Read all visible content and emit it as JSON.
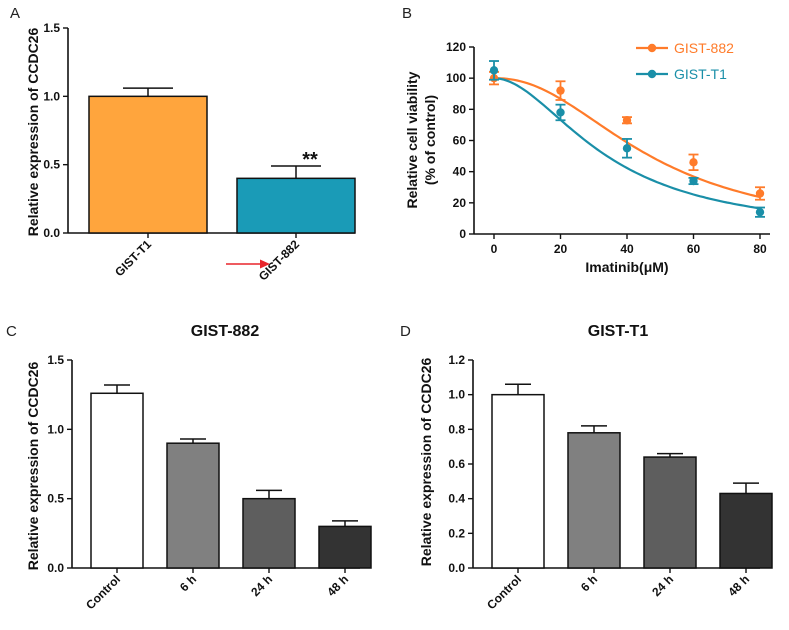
{
  "chart_data": [
    {
      "panel": "A",
      "type": "bar",
      "categories": [
        "GIST-T1",
        "GIST-882"
      ],
      "values": [
        1.0,
        0.4
      ],
      "errors": [
        0.06,
        0.09
      ],
      "colors": [
        "#ffa53d",
        "#1a9bb7"
      ],
      "ylabel": "Relative expression of CCDC26",
      "ylim": [
        0,
        1.5
      ],
      "yticks": [
        "0.0",
        "0.5",
        "1.0",
        "1.5"
      ],
      "annotations": [
        "**"
      ],
      "arrow_color": "#e8252b"
    },
    {
      "panel": "B",
      "type": "line",
      "xlabel": "Imatinib(μM)",
      "ylabel_line1": "Relative cell viability",
      "ylabel_line2": "(% of control)",
      "x": [
        0,
        20,
        40,
        60,
        80
      ],
      "xticks": [
        "0",
        "20",
        "40",
        "60",
        "80"
      ],
      "yticks": [
        "0",
        "20",
        "40",
        "60",
        "80",
        "100",
        "120"
      ],
      "xlim": [
        0,
        80
      ],
      "ylim": [
        0,
        120
      ],
      "series": [
        {
          "name": "GIST-882",
          "color": "#ff7b2a",
          "values": [
            100,
            92,
            73,
            46,
            26
          ],
          "errors": [
            4,
            6,
            2,
            5,
            4
          ],
          "ic50": 47,
          "hill": 2.2
        },
        {
          "name": "GIST-T1",
          "color": "#1a8fa8",
          "values": [
            105,
            78,
            55,
            34,
            14
          ],
          "errors": [
            6,
            5,
            6,
            2,
            3
          ],
          "ic50": 34,
          "hill": 1.9
        }
      ]
    },
    {
      "panel": "C",
      "type": "bar",
      "title": "GIST-882",
      "categories": [
        "Control",
        "6 h",
        "24 h",
        "48 h"
      ],
      "values": [
        1.26,
        0.9,
        0.5,
        0.3
      ],
      "errors": [
        0.06,
        0.03,
        0.06,
        0.04
      ],
      "colors": [
        "#ffffff",
        "#808080",
        "#5e5e5e",
        "#333333"
      ],
      "ylabel": "Relative expression of CCDC26",
      "ylim": [
        0,
        1.5
      ],
      "yticks": [
        "0.0",
        "0.5",
        "1.0",
        "1.5"
      ]
    },
    {
      "panel": "D",
      "type": "bar",
      "title": "GIST-T1",
      "categories": [
        "Control",
        "6 h",
        "24 h",
        "48 h"
      ],
      "values": [
        1.0,
        0.78,
        0.64,
        0.43
      ],
      "errors": [
        0.06,
        0.04,
        0.02,
        0.06
      ],
      "colors": [
        "#ffffff",
        "#808080",
        "#5e5e5e",
        "#333333"
      ],
      "ylabel": "Relative expression of CCDC26",
      "ylim": [
        0,
        1.2
      ],
      "yticks": [
        "0.0",
        "0.2",
        "0.4",
        "0.6",
        "0.8",
        "1.0",
        "1.2"
      ]
    }
  ]
}
